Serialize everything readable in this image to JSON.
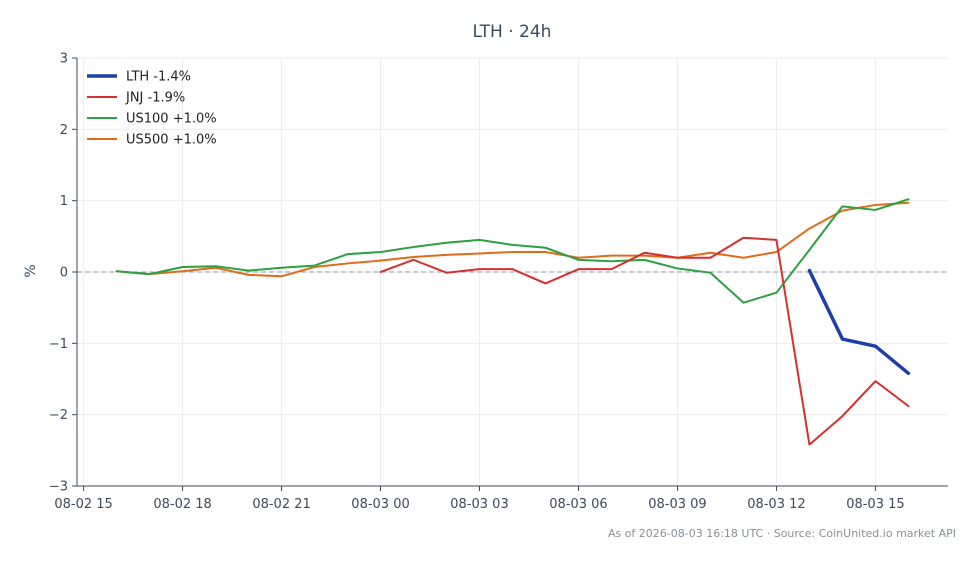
{
  "chart_data": {
    "type": "line",
    "title": "LTH · 24h",
    "ylabel": "%",
    "xlabel": "",
    "x_tick_labels": [
      "08-02 15",
      "08-02 18",
      "08-02 21",
      "08-03 00",
      "08-03 03",
      "08-03 06",
      "08-03 09",
      "08-03 12",
      "08-03 15"
    ],
    "x_tick_hours": [
      15,
      18,
      21,
      24,
      27,
      30,
      33,
      36,
      39
    ],
    "xlim_hours": [
      14.8,
      41.2
    ],
    "ylim": [
      -3,
      3
    ],
    "y_ticks": [
      3,
      2,
      1,
      0,
      -1,
      -2,
      -3
    ],
    "y_tick_labels": [
      "3",
      "2",
      "1",
      "0",
      "−1",
      "−2",
      "−3"
    ],
    "grid": true,
    "zero_line": true,
    "legend_position": "top-left",
    "x_note": "x values are hours where 24 = 08-03 00:00",
    "series": [
      {
        "name": "LTH -1.4%",
        "color": "#1f3fa8",
        "x": [
          37,
          38,
          39,
          40
        ],
        "y": [
          0.02,
          -0.94,
          -1.04,
          -1.42
        ]
      },
      {
        "name": "JNJ -1.9%",
        "color": "#d62f2f",
        "x": [
          24,
          25,
          26,
          27,
          28,
          29,
          30,
          31,
          32,
          33,
          34,
          35,
          36,
          37,
          38,
          39,
          40
        ],
        "y": [
          0.0,
          0.17,
          -0.01,
          0.04,
          0.04,
          -0.16,
          0.04,
          0.04,
          0.27,
          0.2,
          0.2,
          0.48,
          0.45,
          -2.42,
          -2.02,
          -1.53,
          -1.88
        ]
      },
      {
        "name": "US100 +1.0%",
        "color": "#2ca043",
        "x": [
          16,
          17,
          18,
          19,
          20,
          21,
          22,
          23,
          24,
          25,
          26,
          27,
          28,
          29,
          30,
          31,
          32,
          33,
          34,
          35,
          36,
          37,
          38,
          39,
          40
        ],
        "y": [
          0.01,
          -0.03,
          0.07,
          0.08,
          0.02,
          0.06,
          0.09,
          0.25,
          0.28,
          0.35,
          0.41,
          0.45,
          0.38,
          0.34,
          0.17,
          0.15,
          0.17,
          0.05,
          -0.01,
          -0.43,
          -0.29,
          0.31,
          0.92,
          0.87,
          1.02
        ]
      },
      {
        "name": "US500 +1.0%",
        "color": "#e06b1a",
        "x": [
          16,
          17,
          18,
          19,
          20,
          21,
          22,
          23,
          24,
          25,
          26,
          27,
          28,
          29,
          30,
          31,
          32,
          33,
          34,
          35,
          36,
          37,
          38,
          39,
          40
        ],
        "y": [
          0.01,
          -0.03,
          0.01,
          0.06,
          -0.04,
          -0.06,
          0.07,
          0.12,
          0.16,
          0.21,
          0.24,
          0.26,
          0.28,
          0.28,
          0.2,
          0.23,
          0.23,
          0.2,
          0.27,
          0.2,
          0.28,
          0.61,
          0.86,
          0.94,
          0.97
        ]
      }
    ]
  },
  "footer": "As of 2026-08-03 16:18 UTC · Source: CoinUnited.io market API"
}
